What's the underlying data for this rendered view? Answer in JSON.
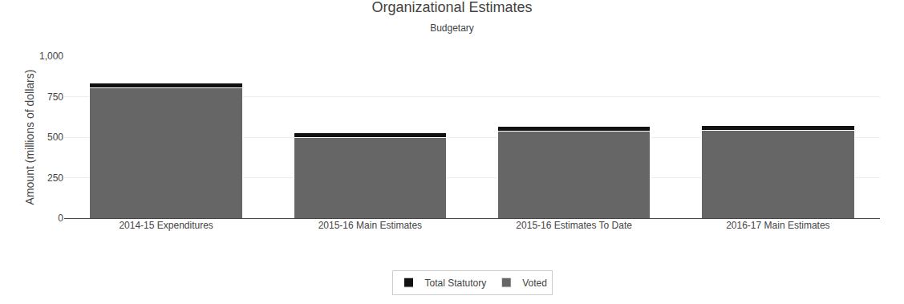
{
  "chart_data": {
    "type": "bar",
    "stacked": true,
    "title": "Organizational Estimates",
    "subtitle": "Budgetary",
    "categories": [
      "2014-15 Expenditures",
      "2015-16 Main Estimates",
      "2015-16 Estimates To Date",
      "2016-17 Main Estimates"
    ],
    "series": [
      {
        "name": "Voted",
        "color": "#666666",
        "values": [
          805,
          497,
          537,
          540
        ]
      },
      {
        "name": "Total Statutory",
        "color": "#111111",
        "values": [
          30,
          30,
          28,
          30
        ]
      }
    ],
    "ylabel": "Amount (millions of dollars)",
    "ylim": [
      0,
      1000
    ],
    "yticks": [
      0,
      250,
      500,
      750,
      {
        "value": 1000,
        "label": "1,000"
      }
    ],
    "grid": true,
    "legend": "bottom"
  }
}
